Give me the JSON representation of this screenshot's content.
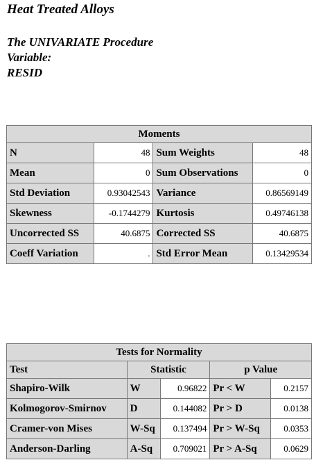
{
  "header": {
    "title": "Heat Treated Alloys",
    "procedure": "The UNIVARIATE Procedure",
    "variable_label": "Variable:",
    "variable_name": "RESID"
  },
  "moments": {
    "caption": "Moments",
    "rows": [
      {
        "label1": "N",
        "value1": "48",
        "label2": "Sum Weights",
        "value2": "48"
      },
      {
        "label1": "Mean",
        "value1": "0",
        "label2": "Sum Observations",
        "value2": "0"
      },
      {
        "label1": "Std Deviation",
        "value1": "0.93042543",
        "label2": "Variance",
        "value2": "0.86569149"
      },
      {
        "label1": "Skewness",
        "value1": "-0.1744279",
        "label2": "Kurtosis",
        "value2": "0.49746138"
      },
      {
        "label1": "Uncorrected SS",
        "value1": "40.6875",
        "label2": "Corrected SS",
        "value2": "40.6875"
      },
      {
        "label1": "Coeff Variation",
        "value1": ".",
        "label2": "Std Error Mean",
        "value2": "0.13429534"
      }
    ]
  },
  "normality": {
    "caption": "Tests for Normality",
    "headers": {
      "test": "Test",
      "statistic": "Statistic",
      "pvalue": "p Value"
    },
    "rows": [
      {
        "test": "Shapiro-Wilk",
        "stat_name": "W",
        "stat_value": "0.96822",
        "p_name": "Pr < W",
        "p_value": "0.2157"
      },
      {
        "test": "Kolmogorov-Smirnov",
        "stat_name": "D",
        "stat_value": "0.144082",
        "p_name": "Pr > D",
        "p_value": "0.0138"
      },
      {
        "test": "Cramer-von Mises",
        "stat_name": "W-Sq",
        "stat_value": "0.137494",
        "p_name": "Pr > W-Sq",
        "p_value": "0.0353"
      },
      {
        "test": "Anderson-Darling",
        "stat_name": "A-Sq",
        "stat_value": "0.709021",
        "p_name": "Pr > A-Sq",
        "p_value": "0.0629"
      }
    ]
  }
}
